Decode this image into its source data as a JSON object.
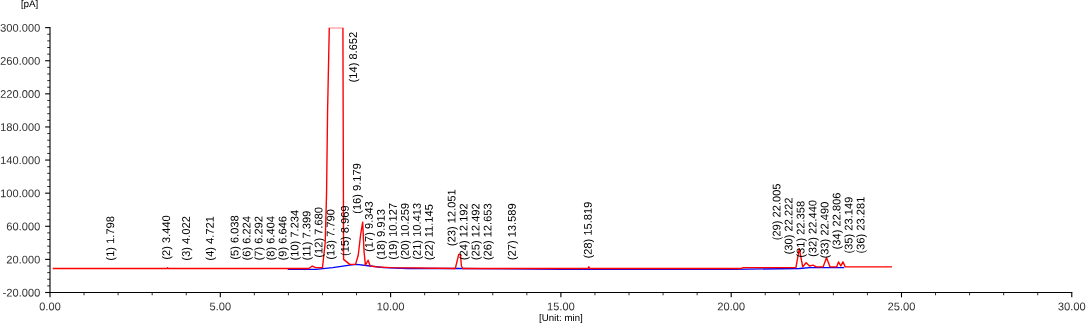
{
  "chart_data": {
    "type": "line",
    "xlabel": "[Unit: min]",
    "ylabel": "[pA]",
    "xlim": [
      0,
      30
    ],
    "xticks": [
      {
        "value": 0,
        "label": "0.00"
      },
      {
        "value": 5,
        "label": "5.00"
      },
      {
        "value": 10,
        "label": "10.00"
      },
      {
        "value": 15,
        "label": "15.00"
      },
      {
        "value": 20,
        "label": "20.00"
      },
      {
        "value": 25,
        "label": "25.00"
      },
      {
        "value": 30,
        "label": "30.00"
      }
    ],
    "ylim": [
      -20,
      300
    ],
    "yticks": [
      {
        "value": -20,
        "label": "-20.000"
      },
      {
        "value": 20,
        "label": "20.000"
      },
      {
        "value": 60,
        "label": "60.000"
      },
      {
        "value": 100,
        "label": "100.000"
      },
      {
        "value": 140,
        "label": "140.000"
      },
      {
        "value": 180,
        "label": "180.000"
      },
      {
        "value": 220,
        "label": "220.000"
      },
      {
        "value": 260,
        "label": "260.000"
      },
      {
        "value": 300,
        "label": "300.000"
      }
    ],
    "grid": false,
    "marker": "none",
    "line_style": "solid",
    "series": [
      {
        "color": "#0000ff",
        "x": [
          7.0,
          7.8,
          8.3,
          8.8,
          9.0,
          9.4,
          9.8,
          10.5,
          12.0,
          15.0,
          20.0,
          22.0,
          22.3,
          23.3
        ],
        "values": [
          8,
          8,
          10,
          13,
          14,
          12,
          10,
          9,
          9,
          8,
          8,
          9,
          10,
          10
        ]
      },
      {
        "color": "#ff0000",
        "x": [
          0.1,
          3.44,
          3.45,
          3.47,
          6.04,
          7.0,
          7.6,
          7.7,
          7.8,
          8.0,
          8.08,
          8.12,
          8.15,
          8.2,
          8.6,
          8.62,
          8.8,
          8.97,
          9.05,
          9.12,
          9.18,
          9.22,
          9.26,
          9.34,
          9.4,
          9.6,
          10.0,
          11.9,
          12.0,
          12.05,
          12.08,
          12.12,
          15.8,
          15.82,
          15.85,
          20.3,
          20.35,
          21.9,
          22.0,
          22.1,
          22.2,
          22.3,
          22.4,
          22.5,
          22.7,
          22.8,
          22.9,
          23.1,
          23.15,
          23.22,
          23.28,
          23.35,
          24.7
        ],
        "values": [
          9,
          9,
          10,
          9,
          9,
          9,
          9,
          12,
          10,
          10,
          40,
          100,
          200,
          300,
          300,
          20,
          14,
          14,
          25,
          50,
          65,
          30,
          13,
          19,
          12,
          11,
          10,
          9,
          26,
          26,
          12,
          9,
          9,
          11,
          9,
          9,
          10,
          10,
          33,
          11,
          16,
          12,
          13,
          11,
          11,
          22,
          11,
          11,
          17,
          12,
          17,
          11,
          11
        ]
      }
    ],
    "annotations": [
      {
        "text": "(1) 1.798",
        "x": 1.798,
        "y": 8.5
      },
      {
        "text": "(2) 3.440",
        "x": 3.44,
        "y": 9.5
      },
      {
        "text": "(3) 4.022",
        "x": 4.022,
        "y": 8.5
      },
      {
        "text": "(4) 4.721",
        "x": 4.721,
        "y": 8.5
      },
      {
        "text": "(5) 6.038",
        "x": 6.038,
        "y": 9.5
      },
      {
        "text": "(6) 6.224",
        "x": 6.224,
        "y": 8.6
      },
      {
        "text": "(7) 6.292",
        "x": 6.292,
        "y": 8.6
      },
      {
        "text": "(8) 6.404",
        "x": 6.404,
        "y": 8.6
      },
      {
        "text": "(9) 6.646",
        "x": 6.646,
        "y": 8.6
      },
      {
        "text": "(10) 7.234",
        "x": 7.234,
        "y": 8.6
      },
      {
        "text": "(11) 7.399",
        "x": 7.399,
        "y": 8.6
      },
      {
        "text": "(12) 7.680",
        "x": 7.68,
        "y": 12
      },
      {
        "text": "(13) 7.790",
        "x": 7.79,
        "y": 9.5
      },
      {
        "text": "(14) 8.652",
        "x": 8.652,
        "y": 300
      },
      {
        "text": "(15) 8.969",
        "x": 8.969,
        "y": 14
      },
      {
        "text": "(16) 9.179",
        "x": 9.179,
        "y": 65
      },
      {
        "text": "(17) 9.343",
        "x": 9.343,
        "y": 19
      },
      {
        "text": "(18) 9.913",
        "x": 9.913,
        "y": 9.5
      },
      {
        "text": "(19) 10.127",
        "x": 10.127,
        "y": 9.5
      },
      {
        "text": "(20) 10.259",
        "x": 10.259,
        "y": 9.5
      },
      {
        "text": "(21) 10.413",
        "x": 10.413,
        "y": 9.5
      },
      {
        "text": "(22) 11.145",
        "x": 11.145,
        "y": 9
      },
      {
        "text": "(23) 12.051",
        "x": 12.051,
        "y": 26
      },
      {
        "text": "(24) 12.192",
        "x": 12.192,
        "y": 9
      },
      {
        "text": "(25) 12.492",
        "x": 12.492,
        "y": 9
      },
      {
        "text": "(26) 12.653",
        "x": 12.653,
        "y": 9
      },
      {
        "text": "(27) 13.589",
        "x": 13.589,
        "y": 9
      },
      {
        "text": "(28) 15.819",
        "x": 15.819,
        "y": 11
      },
      {
        "text": "(29) 22.005",
        "x": 22.005,
        "y": 33
      },
      {
        "text": "(30) 22.222",
        "x": 22.222,
        "y": 16
      },
      {
        "text": "(31) 22.358",
        "x": 22.358,
        "y": 12
      },
      {
        "text": "(32) 22.440",
        "x": 22.44,
        "y": 13
      },
      {
        "text": "(33) 22.490",
        "x": 22.49,
        "y": 11
      },
      {
        "text": "(34) 22.806",
        "x": 22.806,
        "y": 22
      },
      {
        "text": "(35) 23.149",
        "x": 23.149,
        "y": 17
      },
      {
        "text": "(36) 23.281",
        "x": 23.281,
        "y": 17
      }
    ]
  }
}
